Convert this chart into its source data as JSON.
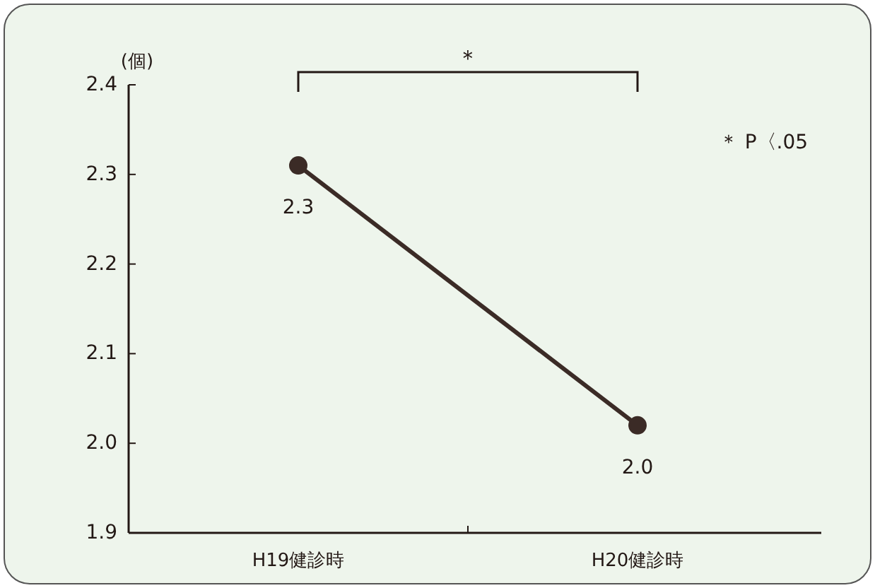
{
  "chart_data": {
    "type": "line",
    "ylabel": "(個)",
    "categories": [
      "H19健診時",
      "H20健診時"
    ],
    "series": [
      {
        "color": "#3b2b26",
        "values": [
          2.31,
          2.02
        ],
        "value_labels": [
          "2.3",
          "2.0"
        ]
      }
    ],
    "ylim": [
      1.9,
      2.4
    ],
    "yticks": [
      {
        "value": 1.9,
        "label": "1.9"
      },
      {
        "value": 2,
        "label": "2.0"
      },
      {
        "value": 2.1,
        "label": "2.1"
      },
      {
        "value": 2.2,
        "label": "2.2"
      },
      {
        "value": 2.3,
        "label": "2.3"
      },
      {
        "value": 2.4,
        "label": "2.4"
      }
    ],
    "marker": "circle",
    "line_style": "solid",
    "grid": false,
    "annotations": [
      "＊",
      "＊ P〈.05"
    ]
  }
}
